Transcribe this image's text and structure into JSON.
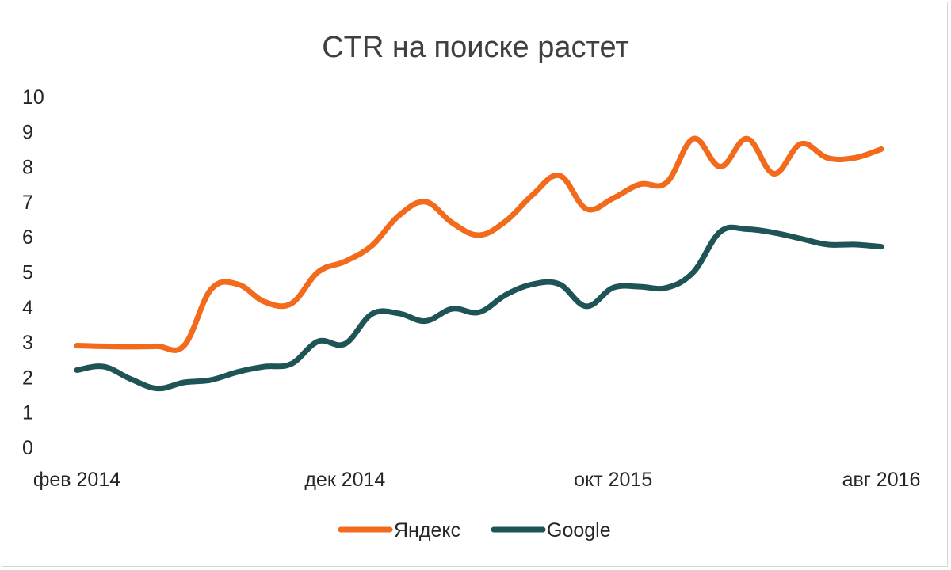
{
  "chart_data": {
    "type": "line",
    "title": "CTR на поиске растет",
    "xlabel": "",
    "ylabel": "",
    "ylim": [
      0,
      10
    ],
    "yticks": [
      0,
      1,
      2,
      3,
      4,
      5,
      6,
      7,
      8,
      9,
      10
    ],
    "x_tick_labels": [
      "фев 2014",
      "дек 2014",
      "окт 2015",
      "авг 2016"
    ],
    "x_tick_indices": [
      0,
      10,
      20,
      30
    ],
    "grid": false,
    "legend": "bottom",
    "series": [
      {
        "name": "Яндекс",
        "color": "#F26B1D",
        "values": [
          2.9,
          2.88,
          2.87,
          2.88,
          2.9,
          4.5,
          4.65,
          4.15,
          4.1,
          5.0,
          5.3,
          5.75,
          6.6,
          7.0,
          6.4,
          6.05,
          6.45,
          7.2,
          7.75,
          6.8,
          7.1,
          7.5,
          7.55,
          8.8,
          8.0,
          8.8,
          7.8,
          8.65,
          8.25,
          8.25,
          8.5
        ]
      },
      {
        "name": "Google",
        "color": "#1F5457",
        "values": [
          2.2,
          2.3,
          1.95,
          1.68,
          1.85,
          1.92,
          2.15,
          2.3,
          2.38,
          3.02,
          2.95,
          3.8,
          3.82,
          3.6,
          3.95,
          3.85,
          4.35,
          4.65,
          4.65,
          4.02,
          4.55,
          4.58,
          4.55,
          5.0,
          6.15,
          6.22,
          6.12,
          5.95,
          5.78,
          5.78,
          5.72
        ]
      }
    ]
  }
}
